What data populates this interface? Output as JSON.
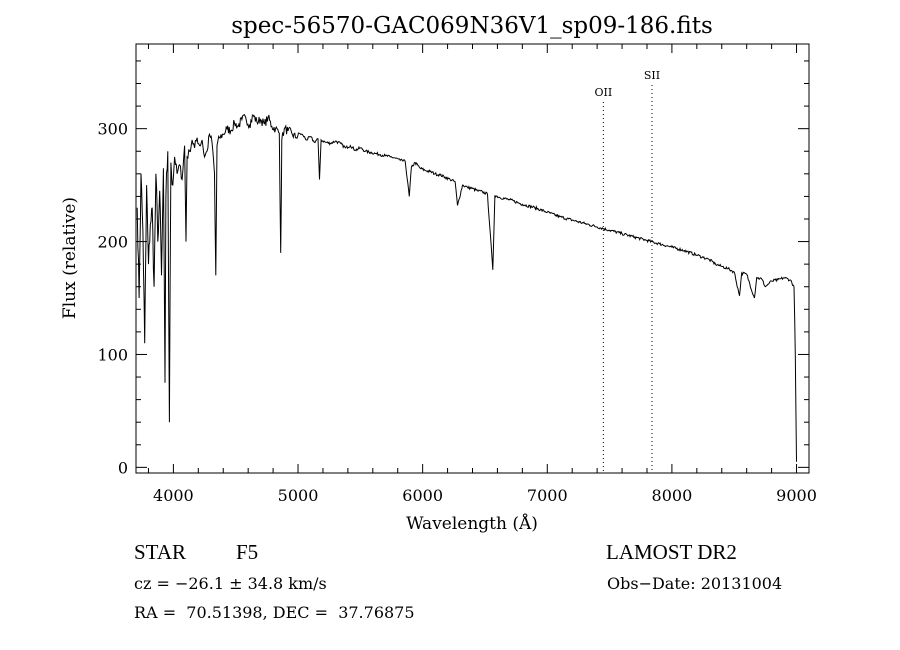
{
  "chart_data": {
    "type": "line",
    "title": "spec-56570-GAC069N36V1_sp09-186.fits",
    "xlabel": "Wavelength (Å)",
    "ylabel": "Flux (relative)",
    "xlim": [
      3700,
      9100
    ],
    "ylim": [
      -5,
      375
    ],
    "xticks": [
      4000,
      5000,
      6000,
      7000,
      8000,
      9000
    ],
    "yticks": [
      0,
      100,
      200,
      300
    ],
    "xtick_labels": [
      "4000",
      "5000",
      "6000",
      "7000",
      "8000",
      "9000"
    ],
    "ytick_labels": [
      "0",
      "100",
      "200",
      "300"
    ],
    "grid": false,
    "line_markers": [
      {
        "label": "OII",
        "x": 7450
      },
      {
        "label": "SII",
        "x": 7840
      }
    ],
    "series": [
      {
        "x": [
          3710,
          3725,
          3740,
          3755,
          3770,
          3785,
          3800,
          3815,
          3830,
          3845,
          3860,
          3875,
          3890,
          3905,
          3920,
          3933,
          3940,
          3955,
          3968,
          3980,
          3995,
          4010,
          4030,
          4050,
          4070,
          4090,
          4101,
          4110,
          4130,
          4150,
          4170,
          4190,
          4210,
          4230,
          4250,
          4270,
          4290,
          4310,
          4330,
          4340,
          4350,
          4370,
          4400,
          4430,
          4460,
          4490,
          4520,
          4550,
          4580,
          4610,
          4640,
          4670,
          4700,
          4730,
          4760,
          4790,
          4820,
          4850,
          4861,
          4870,
          4890,
          4920,
          4950,
          4980,
          5010,
          5040,
          5070,
          5100,
          5130,
          5160,
          5172,
          5185,
          5220,
          5260,
          5300,
          5340,
          5380,
          5420,
          5460,
          5500,
          5540,
          5580,
          5620,
          5660,
          5700,
          5740,
          5780,
          5820,
          5860,
          5893,
          5910,
          5940,
          5980,
          6020,
          6060,
          6100,
          6140,
          6180,
          6220,
          6260,
          6280,
          6320,
          6360,
          6400,
          6440,
          6480,
          6520,
          6563,
          6580,
          6620,
          6700,
          6800,
          6900,
          7000,
          7100,
          7200,
          7300,
          7400,
          7500,
          7600,
          7700,
          7800,
          7900,
          8000,
          8100,
          8200,
          8250,
          8300,
          8350,
          8400,
          8450,
          8500,
          8542,
          8560,
          8600,
          8662,
          8680,
          8720,
          8750,
          8800,
          8850,
          8900,
          8950,
          8980,
          8990,
          9000
        ],
        "values": [
          230,
          150,
          260,
          210,
          110,
          250,
          180,
          215,
          230,
          160,
          260,
          200,
          245,
          170,
          265,
          75,
          240,
          280,
          40,
          270,
          250,
          275,
          260,
          268,
          255,
          285,
          200,
          275,
          280,
          290,
          283,
          292,
          285,
          290,
          275,
          280,
          295,
          288,
          260,
          170,
          285,
          292,
          295,
          300,
          298,
          305,
          302,
          308,
          310,
          303,
          312,
          306,
          308,
          304,
          310,
          302,
          300,
          296,
          190,
          290,
          300,
          298,
          296,
          292,
          296,
          294,
          290,
          293,
          288,
          291,
          255,
          290,
          288,
          287,
          289,
          287,
          283,
          285,
          281,
          283,
          280,
          279,
          278,
          277,
          276,
          275,
          274,
          272,
          271,
          240,
          266,
          270,
          265,
          263,
          262,
          260,
          259,
          257,
          255,
          253,
          232,
          250,
          248,
          247,
          245,
          244,
          242,
          175,
          241,
          239,
          237,
          233,
          230,
          226,
          222,
          219,
          216,
          213,
          210,
          207,
          204,
          201,
          198,
          195,
          192,
          188,
          186,
          184,
          180,
          178,
          176,
          173,
          152,
          172,
          171,
          150,
          168,
          167,
          160,
          165,
          166,
          168,
          166,
          160,
          100,
          5
        ]
      }
    ]
  },
  "info": {
    "object_class": "STAR",
    "subclass": "F5",
    "survey": "LAMOST DR2",
    "cz_line": "cz = −26.1 ± 34.8 km/s",
    "obs_date_line": "Obs−Date: 20131004",
    "radec_line": "RA =  70.51398, DEC =  37.76875"
  }
}
